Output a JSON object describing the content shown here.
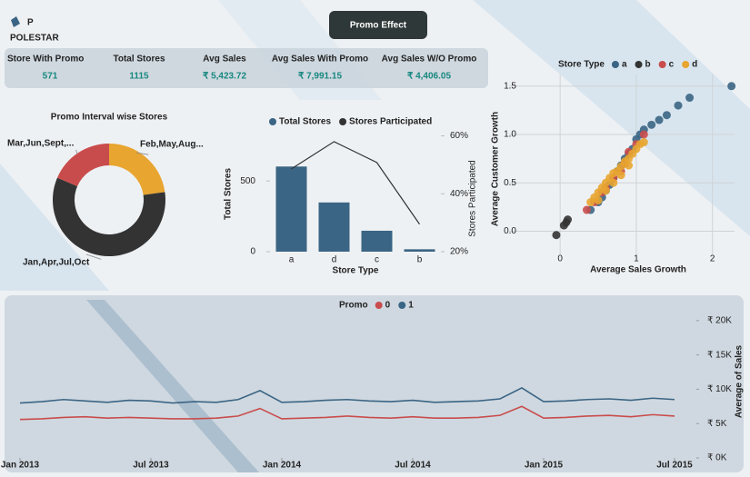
{
  "header": {
    "logo_letter": "P",
    "logo_text": "POLESTAR",
    "title": "Promo Effect"
  },
  "kpis": [
    {
      "label": "Store With Promo",
      "value": "571"
    },
    {
      "label": "Total Stores",
      "value": "1115"
    },
    {
      "label": "Avg Sales",
      "value": "₹ 5,423.72"
    },
    {
      "label": "Avg Sales With Promo",
      "value": "₹ 7,991.15"
    },
    {
      "label": "Avg Sales W/O Promo",
      "value": "₹ 4,406.05"
    }
  ],
  "chart_data": [
    {
      "type": "pie",
      "donut": true,
      "title": "Promo Interval wise Stores",
      "categories": [
        "Feb,May,Aug...",
        "Jan,Apr,Jul,Oct",
        "Mar,Jun,Sept,..."
      ],
      "values": [
        130,
        335,
        106
      ],
      "colors": [
        "#e8a530",
        "#333333",
        "#c94c4c"
      ]
    },
    {
      "type": "bar",
      "categories": [
        "a",
        "d",
        "c",
        "b"
      ],
      "series": [
        {
          "name": "Total Stores",
          "color": "#3b6584",
          "values": [
            602,
            348,
            148,
            17
          ]
        },
        {
          "name": "Stores Participated",
          "color": "#333333",
          "type": "line",
          "axis": "y2",
          "values": [
            48.6,
            58,
            50.8,
            29.5
          ]
        }
      ],
      "x_label": "Store Type",
      "y_label": "Total Stores",
      "y2_label": "Stores Participated",
      "ylim": [
        0,
        880
      ],
      "yticks": [
        0,
        500
      ],
      "y2lim": [
        20,
        63
      ],
      "y2ticks": [
        {
          "value": 20,
          "label": "20%"
        },
        {
          "value": 40,
          "label": "40%"
        },
        {
          "value": 60,
          "label": "60%"
        }
      ]
    },
    {
      "type": "scatter",
      "legend_title": "Store Type",
      "x_label": "Average Sales Growth",
      "y_label": "Average Customer Growth",
      "xlim": [
        -0.67,
        2.29
      ],
      "xticks": [
        0,
        1,
        2
      ],
      "ylim": [
        -0.24,
        1.62
      ],
      "yticks": [
        {
          "value": 0,
          "label": "0.0"
        },
        {
          "value": 0.5,
          "label": "0.5"
        },
        {
          "value": 1,
          "label": "1.0"
        },
        {
          "value": 1.5,
          "label": "1.5"
        }
      ],
      "grid": true,
      "series": [
        {
          "name": "a",
          "color": "#3b6584",
          "x": [
            0.4,
            0.55,
            0.6,
            0.7,
            0.75,
            0.8,
            0.9,
            0.95,
            1.0,
            1.05,
            1.1,
            1.2,
            1.3,
            1.4,
            1.55,
            1.7,
            2.25,
            0.65,
            0.85,
            0.5
          ],
          "values": [
            0.22,
            0.35,
            0.42,
            0.55,
            0.62,
            0.68,
            0.8,
            0.85,
            0.95,
            1.0,
            1.05,
            1.1,
            1.15,
            1.2,
            1.3,
            1.38,
            1.5,
            0.48,
            0.75,
            0.3
          ]
        },
        {
          "name": "b",
          "color": "#333333",
          "x": [
            -0.05,
            0.05,
            0.1,
            0.08
          ],
          "values": [
            -0.04,
            0.06,
            0.12,
            0.09
          ]
        },
        {
          "name": "c",
          "color": "#c94c4c",
          "x": [
            0.35,
            0.45,
            0.55,
            0.7,
            0.85,
            0.9,
            1.0,
            1.1,
            0.6,
            0.8
          ],
          "values": [
            0.22,
            0.3,
            0.4,
            0.55,
            0.7,
            0.82,
            0.9,
            1.0,
            0.45,
            0.62
          ]
        },
        {
          "name": "d",
          "color": "#e8a530",
          "x": [
            0.4,
            0.45,
            0.5,
            0.55,
            0.6,
            0.65,
            0.7,
            0.75,
            0.8,
            0.85,
            0.9,
            0.95,
            1.0,
            1.05,
            1.1,
            0.5,
            0.6,
            0.7,
            0.8,
            0.9
          ],
          "values": [
            0.3,
            0.35,
            0.4,
            0.45,
            0.5,
            0.55,
            0.6,
            0.62,
            0.67,
            0.72,
            0.75,
            0.8,
            0.85,
            0.9,
            0.92,
            0.32,
            0.42,
            0.5,
            0.58,
            0.68
          ]
        }
      ]
    },
    {
      "type": "line",
      "legend_title": "Promo",
      "y_label": "Average of Sales",
      "x": [
        "2013-01",
        "2013-02",
        "2013-03",
        "2013-04",
        "2013-05",
        "2013-06",
        "2013-07",
        "2013-08",
        "2013-09",
        "2013-10",
        "2013-11",
        "2013-12",
        "2014-01",
        "2014-02",
        "2014-03",
        "2014-04",
        "2014-05",
        "2014-06",
        "2014-07",
        "2014-08",
        "2014-09",
        "2014-10",
        "2014-11",
        "2014-12",
        "2015-01",
        "2015-02",
        "2015-03",
        "2015-04",
        "2015-05",
        "2015-06",
        "2015-07"
      ],
      "xlim": [
        "2013-01",
        "2015-08"
      ],
      "xticks": [
        {
          "value": "2013-01",
          "label": "Jan 2013"
        },
        {
          "value": "2013-07",
          "label": "Jul 2013"
        },
        {
          "value": "2014-01",
          "label": "Jan 2014"
        },
        {
          "value": "2014-07",
          "label": "Jul 2014"
        },
        {
          "value": "2015-01",
          "label": "Jan 2015"
        },
        {
          "value": "2015-07",
          "label": "Jul 2015"
        }
      ],
      "ylim": [
        0,
        21700
      ],
      "yticks": [
        {
          "value": 0,
          "label": "₹ 0K"
        },
        {
          "value": 5000,
          "label": "₹ 5K"
        },
        {
          "value": 10000,
          "label": "₹ 10K"
        },
        {
          "value": 15000,
          "label": "₹ 15K"
        },
        {
          "value": 20000,
          "label": "₹ 20K"
        }
      ],
      "series": [
        {
          "name": "0",
          "color": "#c94c4c",
          "values": [
            5600,
            5700,
            5900,
            6000,
            5800,
            5900,
            5800,
            5700,
            5700,
            5800,
            6100,
            7200,
            5700,
            5800,
            5900,
            6100,
            5900,
            5800,
            6000,
            5800,
            5800,
            5900,
            6200,
            7500,
            5800,
            5900,
            6100,
            6200,
            6000,
            6300,
            6100
          ]
        },
        {
          "name": "1",
          "color": "#3b6584",
          "values": [
            8000,
            8200,
            8500,
            8300,
            8100,
            8400,
            8300,
            8000,
            8200,
            8100,
            8500,
            9800,
            8100,
            8200,
            8400,
            8500,
            8300,
            8200,
            8400,
            8100,
            8200,
            8300,
            8600,
            10200,
            8200,
            8300,
            8500,
            8600,
            8400,
            8700,
            8500
          ]
        }
      ]
    }
  ]
}
